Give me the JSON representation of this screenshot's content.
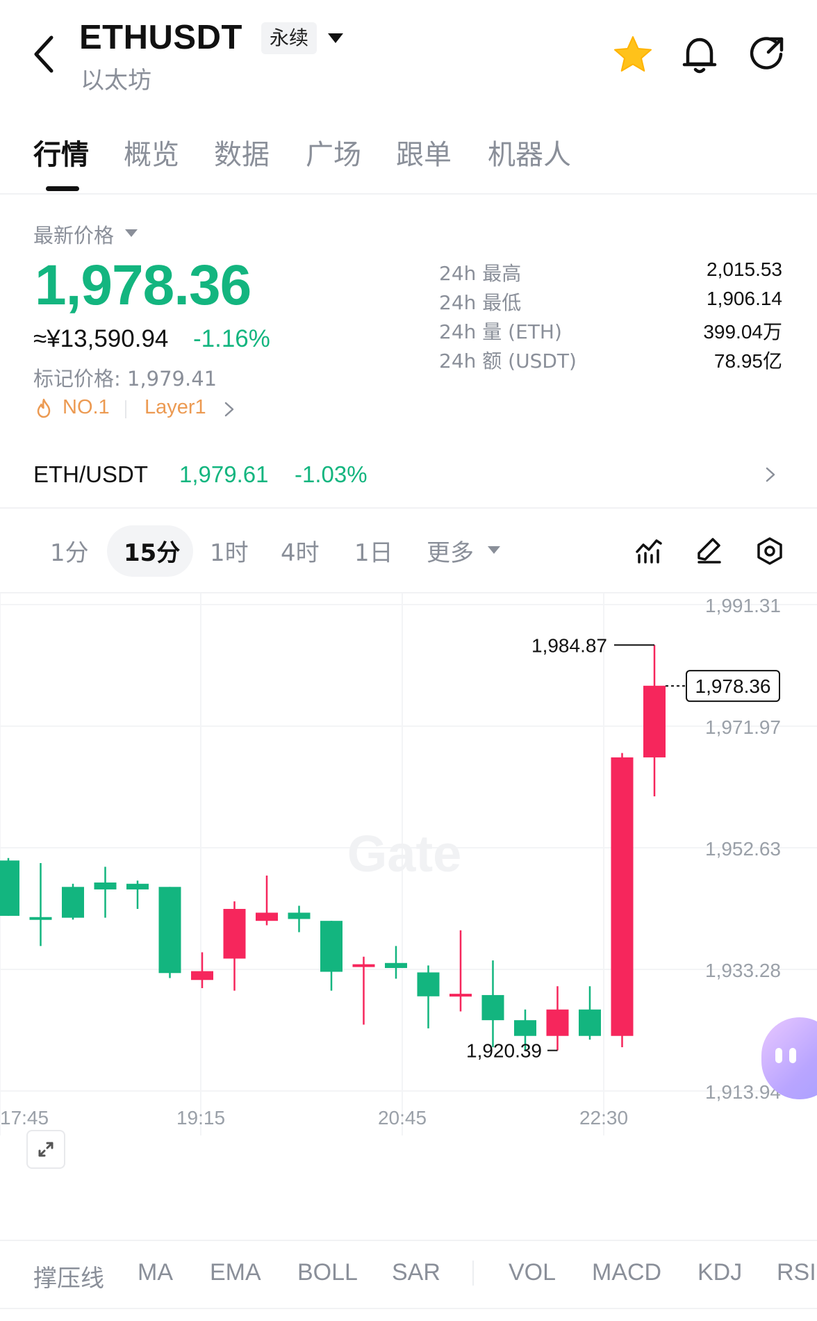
{
  "header": {
    "symbol": "ETHUSDT",
    "contract_type": "永续",
    "name": "以太坊"
  },
  "tabs": [
    {
      "label": "行情",
      "active": true
    },
    {
      "label": "概览",
      "active": false
    },
    {
      "label": "数据",
      "active": false
    },
    {
      "label": "广场",
      "active": false
    },
    {
      "label": "跟单",
      "active": false
    },
    {
      "label": "机器人",
      "active": false
    }
  ],
  "price": {
    "latest_label": "最新价格",
    "last": "1,978.36",
    "cny": "≈¥13,590.94",
    "change": "-1.16%",
    "mark": "标记价格: 1,979.41",
    "rank": "NO.1",
    "category": "Layer1"
  },
  "stats": [
    {
      "label": "24h  最高",
      "value": "2,015.53"
    },
    {
      "label": "24h  最低",
      "value": "1,906.14"
    },
    {
      "label": "24h  量 (ETH)",
      "value": "399.04万"
    },
    {
      "label": "24h  额 (USDT)",
      "value": "78.95亿"
    }
  ],
  "spot": {
    "pair": "ETH/USDT",
    "price": "1,979.61",
    "change": "-1.03%"
  },
  "intervals": [
    {
      "label": "1分",
      "active": false
    },
    {
      "label": "15分",
      "active": true
    },
    {
      "label": "1时",
      "active": false
    },
    {
      "label": "4时",
      "active": false
    },
    {
      "label": "1日",
      "active": false
    },
    {
      "label": "更多",
      "active": false
    }
  ],
  "colors": {
    "up": "#f6265c",
    "down": "#13b57f",
    "accent_orange": "#ec9a52",
    "star": "#ffc21a"
  },
  "icons": [
    "back-icon",
    "star-icon",
    "bell-icon",
    "share-icon",
    "fire-icon",
    "indicator-icon",
    "draw-icon",
    "settings-icon",
    "expand-icon"
  ],
  "chart_data": {
    "type": "candlestick",
    "watermark": "Gate",
    "y_ticks": [
      "1,991.31",
      "1,971.97",
      "1,952.63",
      "1,933.28",
      "1,913.94"
    ],
    "ylim": [
      1913.94,
      1991.31
    ],
    "x_ticks": [
      "17:45",
      "19:15",
      "20:45",
      "22:30"
    ],
    "high_label": "1,984.87",
    "low_label": "1,920.39",
    "last_label": "1,978.36",
    "candles": [
      {
        "o": 1950.6,
        "h": 1951.0,
        "l": 1941.8,
        "c": 1941.8
      },
      {
        "o": 1941.6,
        "h": 1950.2,
        "l": 1937.0,
        "c": 1941.5
      },
      {
        "o": 1946.4,
        "h": 1946.9,
        "l": 1941.2,
        "c": 1941.5
      },
      {
        "o": 1947.1,
        "h": 1949.6,
        "l": 1941.5,
        "c": 1946.0
      },
      {
        "o": 1946.9,
        "h": 1947.4,
        "l": 1942.9,
        "c": 1946.0
      },
      {
        "o": 1946.4,
        "h": 1946.4,
        "l": 1931.9,
        "c": 1932.7
      },
      {
        "o": 1931.6,
        "h": 1936.0,
        "l": 1930.3,
        "c": 1933.0
      },
      {
        "o": 1935.0,
        "h": 1944.1,
        "l": 1929.9,
        "c": 1942.9
      },
      {
        "o": 1941.0,
        "h": 1948.2,
        "l": 1940.3,
        "c": 1942.3
      },
      {
        "o": 1942.3,
        "h": 1943.4,
        "l": 1939.2,
        "c": 1941.3
      },
      {
        "o": 1941.0,
        "h": 1941.0,
        "l": 1929.9,
        "c": 1932.9
      },
      {
        "o": 1934.1,
        "h": 1935.3,
        "l": 1924.5,
        "c": 1934.1
      },
      {
        "o": 1934.3,
        "h": 1937.0,
        "l": 1931.8,
        "c": 1933.5
      },
      {
        "o": 1932.8,
        "h": 1933.9,
        "l": 1923.9,
        "c": 1929.0
      },
      {
        "o": 1929.4,
        "h": 1939.5,
        "l": 1926.6,
        "c": 1929.4
      },
      {
        "o": 1929.2,
        "h": 1934.7,
        "l": 1920.9,
        "c": 1925.2
      },
      {
        "o": 1925.2,
        "h": 1926.9,
        "l": 1920.4,
        "c": 1922.7
      },
      {
        "o": 1922.7,
        "h": 1930.6,
        "l": 1920.4,
        "c": 1926.9
      },
      {
        "o": 1926.9,
        "h": 1930.6,
        "l": 1922.1,
        "c": 1922.7
      },
      {
        "o": 1922.7,
        "h": 1967.7,
        "l": 1920.9,
        "c": 1967.0
      },
      {
        "o": 1967.0,
        "h": 1984.87,
        "l": 1960.8,
        "c": 1978.4
      }
    ]
  },
  "indicators": {
    "main": [
      "撑压线",
      "MA",
      "EMA",
      "BOLL",
      "SAR"
    ],
    "sub": [
      "VOL",
      "MACD",
      "KDJ",
      "RSI"
    ]
  }
}
